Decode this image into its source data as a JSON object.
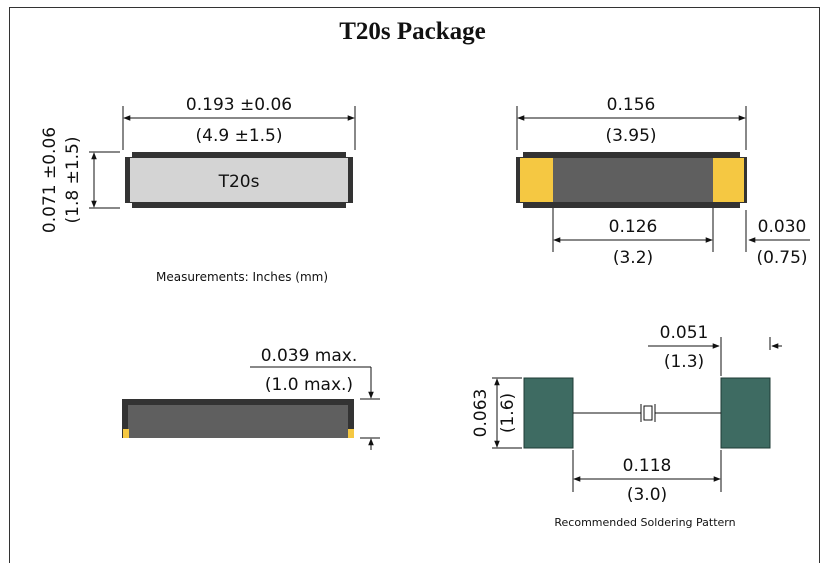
{
  "title": "T20s Package",
  "colors": {
    "body_light": "#d4d4d4",
    "body_dark": "#5f5f5f",
    "terminal": "#f5c842",
    "pad": "#3e6b62",
    "outline": "#333333"
  },
  "top_view": {
    "label": "T20s",
    "length_in": "0.193 ±0.06",
    "length_mm": "(4.9 ±1.5)",
    "width_in": "0.071 ±0.06",
    "width_mm": "(1.8 ±1.5)"
  },
  "units_note": "Measurements: Inches (mm)",
  "bottom_view": {
    "length_in": "0.156",
    "length_mm": "(3.95)",
    "inner_in": "0.126",
    "inner_mm": "(3.2)",
    "terminal_in": "0.030",
    "terminal_mm": "(0.75)"
  },
  "side_view": {
    "height_in": "0.039 max.",
    "height_mm": "(1.0 max.)"
  },
  "soldering_pattern": {
    "pad_width_in": "0.051",
    "pad_width_mm": "(1.3)",
    "pad_height_in": "0.063",
    "pad_height_mm": "(1.6)",
    "gap_in": "0.118",
    "gap_mm": "(3.0)",
    "caption": "Recommended Soldering Pattern"
  }
}
